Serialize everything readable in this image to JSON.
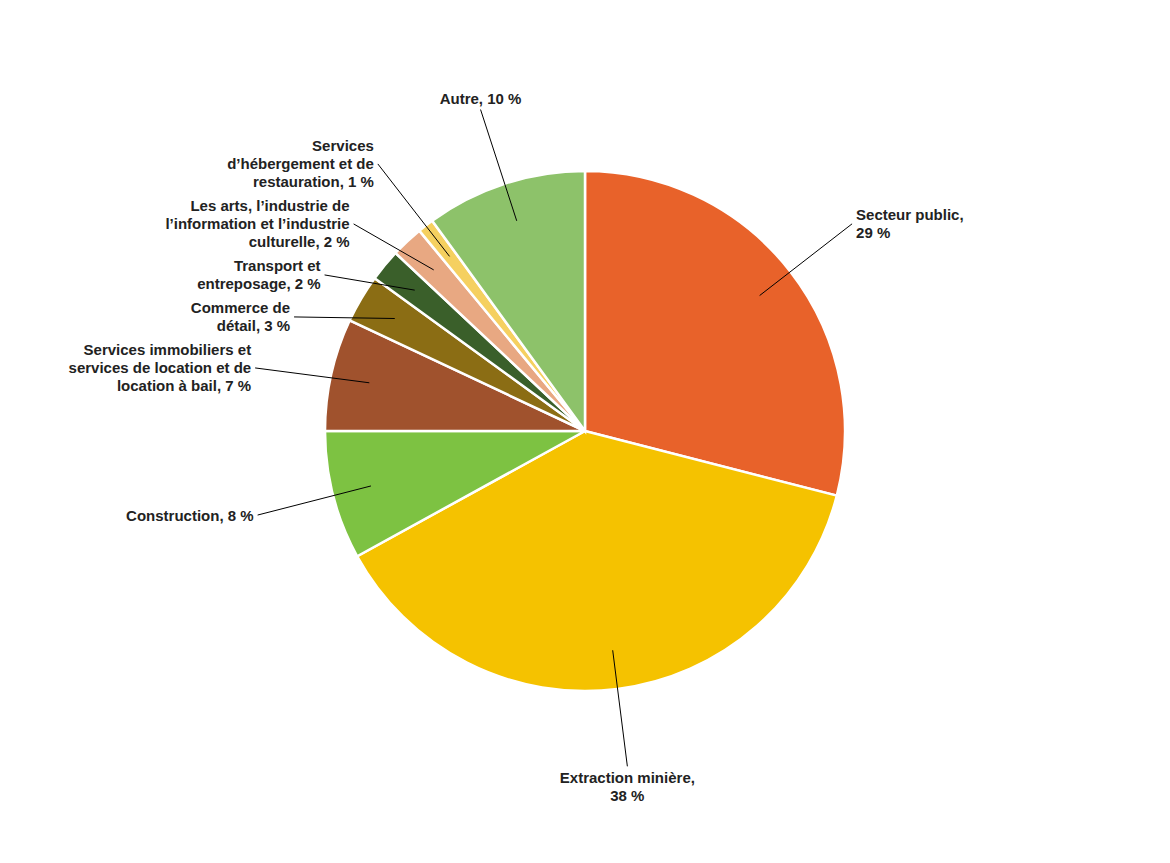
{
  "chart_data": {
    "type": "pie",
    "categories": [
      "Secteur public,\n29 %",
      "Extraction minière,\n38 %",
      "Construction, 8 %",
      "Services immobiliers et\nservices de location et de\nlocation à bail, 7 %",
      "Commerce de\ndétail, 3 %",
      "Transport et\nentreposage, 2 %",
      "Les arts, l’industrie de\nl’information et l’industrie\nculturelle, 2 %",
      "Services\nd’hébergement et de\nrestauration, 1 %",
      "Autre, 10 %"
    ],
    "values": [
      29,
      38,
      8,
      7,
      3,
      2,
      2,
      1,
      10
    ],
    "colors": [
      "#E8622A",
      "#F5C200",
      "#7DC242",
      "#A0522D",
      "#8B6D14",
      "#3A5F2A",
      "#E8A882",
      "#F5D060",
      "#8DC26A"
    ]
  }
}
